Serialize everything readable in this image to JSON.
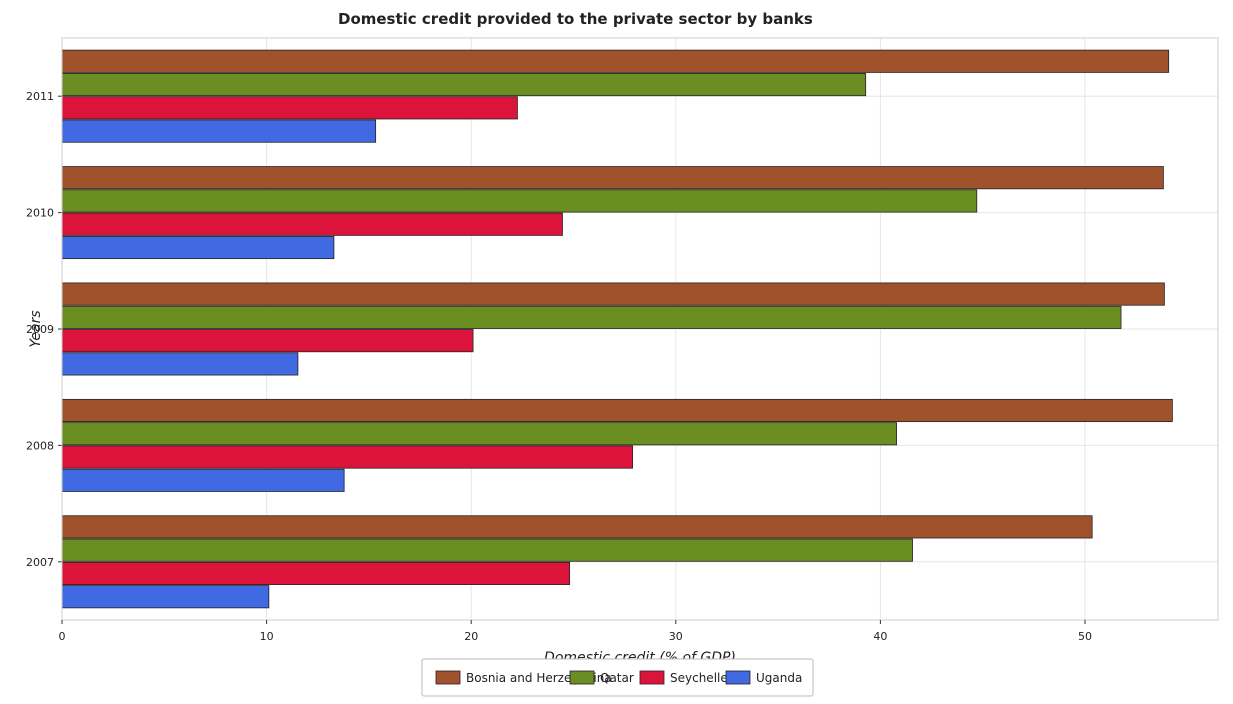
{
  "chart_data": {
    "type": "bar",
    "orientation": "horizontal",
    "title": "Domestic credit provided to the private sector by banks",
    "xlabel": "Domestic credit (% of GDP)",
    "ylabel": "Years",
    "categories": [
      "2007",
      "2008",
      "2009",
      "2010",
      "2011"
    ],
    "xlim": [
      0,
      56.5
    ],
    "xticks": [
      0,
      10,
      20,
      30,
      40,
      50
    ],
    "grid": true,
    "legend_position": "bottom-center",
    "series": [
      {
        "name": "Bosnia and Herzegovina",
        "color": "#a0522d",
        "values": [
          50.35,
          54.27,
          53.88,
          53.83,
          54.09
        ]
      },
      {
        "name": "Qatar",
        "color": "#6b8e23",
        "values": [
          41.57,
          40.79,
          51.76,
          44.71,
          39.28
        ]
      },
      {
        "name": "Seychelles",
        "color": "#dc143c",
        "values": [
          24.81,
          27.89,
          20.09,
          24.46,
          22.26
        ]
      },
      {
        "name": "Uganda",
        "color": "#4169e1",
        "values": [
          10.11,
          13.79,
          11.53,
          13.29,
          15.33
        ]
      }
    ]
  }
}
